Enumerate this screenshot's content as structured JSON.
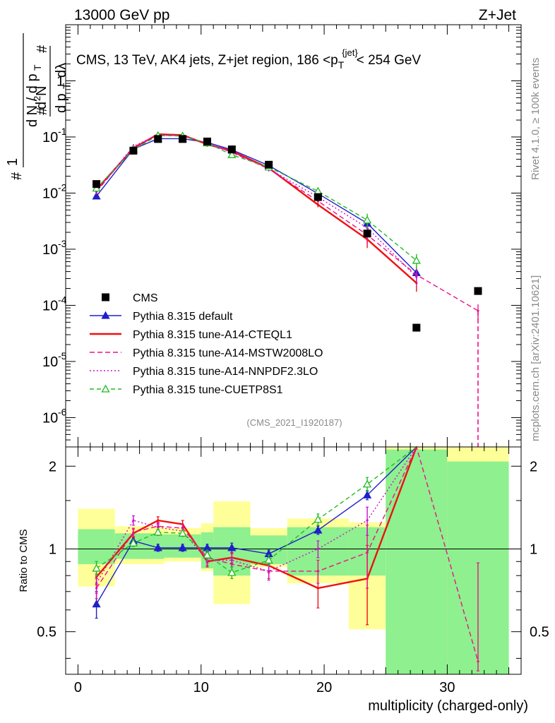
{
  "header": {
    "left": "13000 GeV pp",
    "right": "Z+Jet"
  },
  "side": {
    "rivet": "Rivet 4.1.0, ≥ 100k events",
    "site": "mcplots.cern.ch [arXiv:2401.10621]"
  },
  "chart_data": {
    "type": "line",
    "title": "CMS, 13 TeV, AK4 jets, Z+jet region, 186 < p_T^{jet} < 254 GeV",
    "title_parts": {
      "main": "CMS, 13 TeV, AK4 jets, Z+jet region, 186 <p",
      "sub": "T",
      "sup": "{jet}",
      "tail": "< 254 GeV"
    },
    "analysis_id": "(CMS_2021_I1920187)",
    "xlabel": "multiplicity (charged-only)",
    "ylabel_top": "1/(dN/dp_T) d²N/(dp_T dλ)",
    "ylabel_ratio": "Ratio to CMS",
    "xlim": [
      -1,
      36
    ],
    "ylim_main": [
      3e-07,
      10
    ],
    "ylim_ratio": [
      0.35,
      2.35
    ],
    "x_ticks": [
      0,
      10,
      20,
      30
    ],
    "x_tick_labels": [
      "0",
      "10",
      "20",
      "30"
    ],
    "y_ticks_main": [
      {
        "mant": "10",
        "exp": "-6",
        "v": 1e-06
      },
      {
        "mant": "10",
        "exp": "-5",
        "v": 1e-05
      },
      {
        "mant": "10",
        "exp": "-4",
        "v": 0.0001
      },
      {
        "mant": "10",
        "exp": "-3",
        "v": 0.001
      },
      {
        "mant": "10",
        "exp": "-2",
        "v": 0.01
      },
      {
        "mant": "10",
        "exp": "-1",
        "v": 0.1
      },
      {
        "mant": "1",
        "exp": "",
        "v": 1
      }
    ],
    "y_ticks_ratio": [
      {
        "label": "0.5",
        "v": 0.5
      },
      {
        "label": "1",
        "v": 1
      },
      {
        "label": "2",
        "v": 2
      }
    ],
    "bins": [
      [
        0,
        3
      ],
      [
        3,
        6
      ],
      [
        6,
        7
      ],
      [
        7,
        10
      ],
      [
        10,
        11
      ],
      [
        11,
        14
      ],
      [
        14,
        17
      ],
      [
        17,
        22
      ],
      [
        22,
        25
      ],
      [
        25,
        30
      ],
      [
        30,
        35
      ]
    ],
    "x": [
      1.5,
      4.5,
      6.5,
      8.5,
      10.5,
      12.5,
      15.5,
      19.5,
      23.5,
      27.5,
      32.5
    ],
    "data": {
      "name": "CMS",
      "values": [
        0.0145,
        0.057,
        0.092,
        0.092,
        0.083,
        0.06,
        0.032,
        0.0085,
        0.0019,
        4e-05,
        0.00018
      ],
      "band_green_lo": [
        0.88,
        0.92,
        0.92,
        0.93,
        0.85,
        0.8,
        0.88,
        0.8,
        0.8,
        0.35,
        0.35
      ],
      "band_green_hi": [
        1.18,
        1.14,
        1.13,
        1.13,
        1.15,
        1.2,
        1.12,
        1.2,
        1.2,
        2.3,
        2.08
      ],
      "band_yellow_lo": [
        0.73,
        0.88,
        0.88,
        0.9,
        0.83,
        0.63,
        0.86,
        0.75,
        0.51,
        0.35,
        0.35
      ],
      "band_yellow_hi": [
        1.4,
        1.21,
        1.21,
        1.19,
        1.24,
        1.49,
        1.19,
        1.29,
        1.25,
        2.35,
        2.35
      ]
    },
    "series": [
      {
        "name": "Pythia 8.315 default",
        "color": "#1f1fcc",
        "dash": "",
        "marker": "triangle-filled",
        "x": [
          1.5,
          4.5,
          6.5,
          8.5,
          10.5,
          12.5,
          15.5,
          19.5,
          23.5,
          27.5
        ],
        "values": [
          0.0088,
          0.061,
          0.093,
          0.093,
          0.08,
          0.059,
          0.031,
          0.0098,
          0.0029,
          0.00038
        ],
        "ratio": [
          0.63,
          1.07,
          1.01,
          1.01,
          1.01,
          1.01,
          0.96,
          1.17,
          1.57,
          9.5
        ],
        "err": [
          0.07,
          0.03,
          0.03,
          0.03,
          0.03,
          0.04,
          0.03,
          0.04,
          0.06,
          0.5
        ]
      },
      {
        "name": "Pythia 8.315 tune-A14-CTEQL1",
        "color": "#ee1111",
        "dash": "",
        "marker": "none",
        "x": [
          1.5,
          4.5,
          6.5,
          8.5,
          10.5,
          12.5,
          15.5,
          19.5,
          23.5,
          27.5
        ],
        "values": [
          0.0115,
          0.063,
          0.112,
          0.108,
          0.074,
          0.056,
          0.028,
          0.0062,
          0.0015,
          0.00025
        ],
        "ratio": [
          0.79,
          1.14,
          1.27,
          1.23,
          0.9,
          0.93,
          0.87,
          0.72,
          0.78,
          6.2
        ],
        "err": [
          0.05,
          0.04,
          0.04,
          0.04,
          0.04,
          0.04,
          0.05,
          0.11,
          0.25,
          1.5
        ]
      },
      {
        "name": "Pythia 8.315 tune-A14-MSTW2008LO",
        "color": "#ee1188",
        "dash": "7,4",
        "marker": "none",
        "x": [
          1.5,
          4.5,
          6.5,
          8.5,
          10.5,
          12.5,
          15.5,
          19.5,
          23.5,
          27.5,
          32.5
        ],
        "values": [
          0.0105,
          0.066,
          0.108,
          0.105,
          0.077,
          0.053,
          0.027,
          0.0072,
          0.0018,
          0.00035,
          8e-05
        ],
        "ratio": [
          0.72,
          1.15,
          1.21,
          1.19,
          0.93,
          0.88,
          0.83,
          0.83,
          0.97,
          8.7,
          0.39
        ],
        "err": [
          0.06,
          0.04,
          0.04,
          0.04,
          0.04,
          0.05,
          0.06,
          0.08,
          0.25,
          2.0,
          0.5
        ]
      },
      {
        "name": "Pythia 8.315 tune-A14-NNPDF2.3LO",
        "color": "#cc11cc",
        "dash": "2,3",
        "marker": "none",
        "x": [
          1.5,
          4.5,
          6.5,
          8.5,
          10.5,
          12.5,
          15.5,
          19.5,
          23.5,
          27.5
        ],
        "values": [
          0.011,
          0.068,
          0.11,
          0.105,
          0.077,
          0.054,
          0.027,
          0.0085,
          0.0024,
          0.00032
        ],
        "ratio": [
          0.75,
          1.27,
          1.2,
          1.16,
          0.91,
          0.91,
          0.83,
          1.0,
          1.27,
          8.0
        ],
        "err": [
          0.06,
          0.05,
          0.04,
          0.04,
          0.04,
          0.05,
          0.05,
          0.07,
          0.15,
          2.0
        ]
      },
      {
        "name": "Pythia 8.315 tune-CUETP8S1",
        "color": "#22bb22",
        "dash": "6,4",
        "marker": "triangle-open",
        "x": [
          1.5,
          4.5,
          6.5,
          8.5,
          10.5,
          12.5,
          15.5,
          19.5,
          23.5,
          27.5
        ],
        "values": [
          0.0122,
          0.06,
          0.106,
          0.104,
          0.078,
          0.048,
          0.029,
          0.0108,
          0.0033,
          0.00063
        ],
        "ratio": [
          0.85,
          1.05,
          1.15,
          1.14,
          0.95,
          0.82,
          0.91,
          1.28,
          1.72,
          15.7
        ],
        "err": [
          0.05,
          0.03,
          0.03,
          0.03,
          0.04,
          0.04,
          0.04,
          0.06,
          0.1,
          3.0
        ]
      }
    ]
  }
}
